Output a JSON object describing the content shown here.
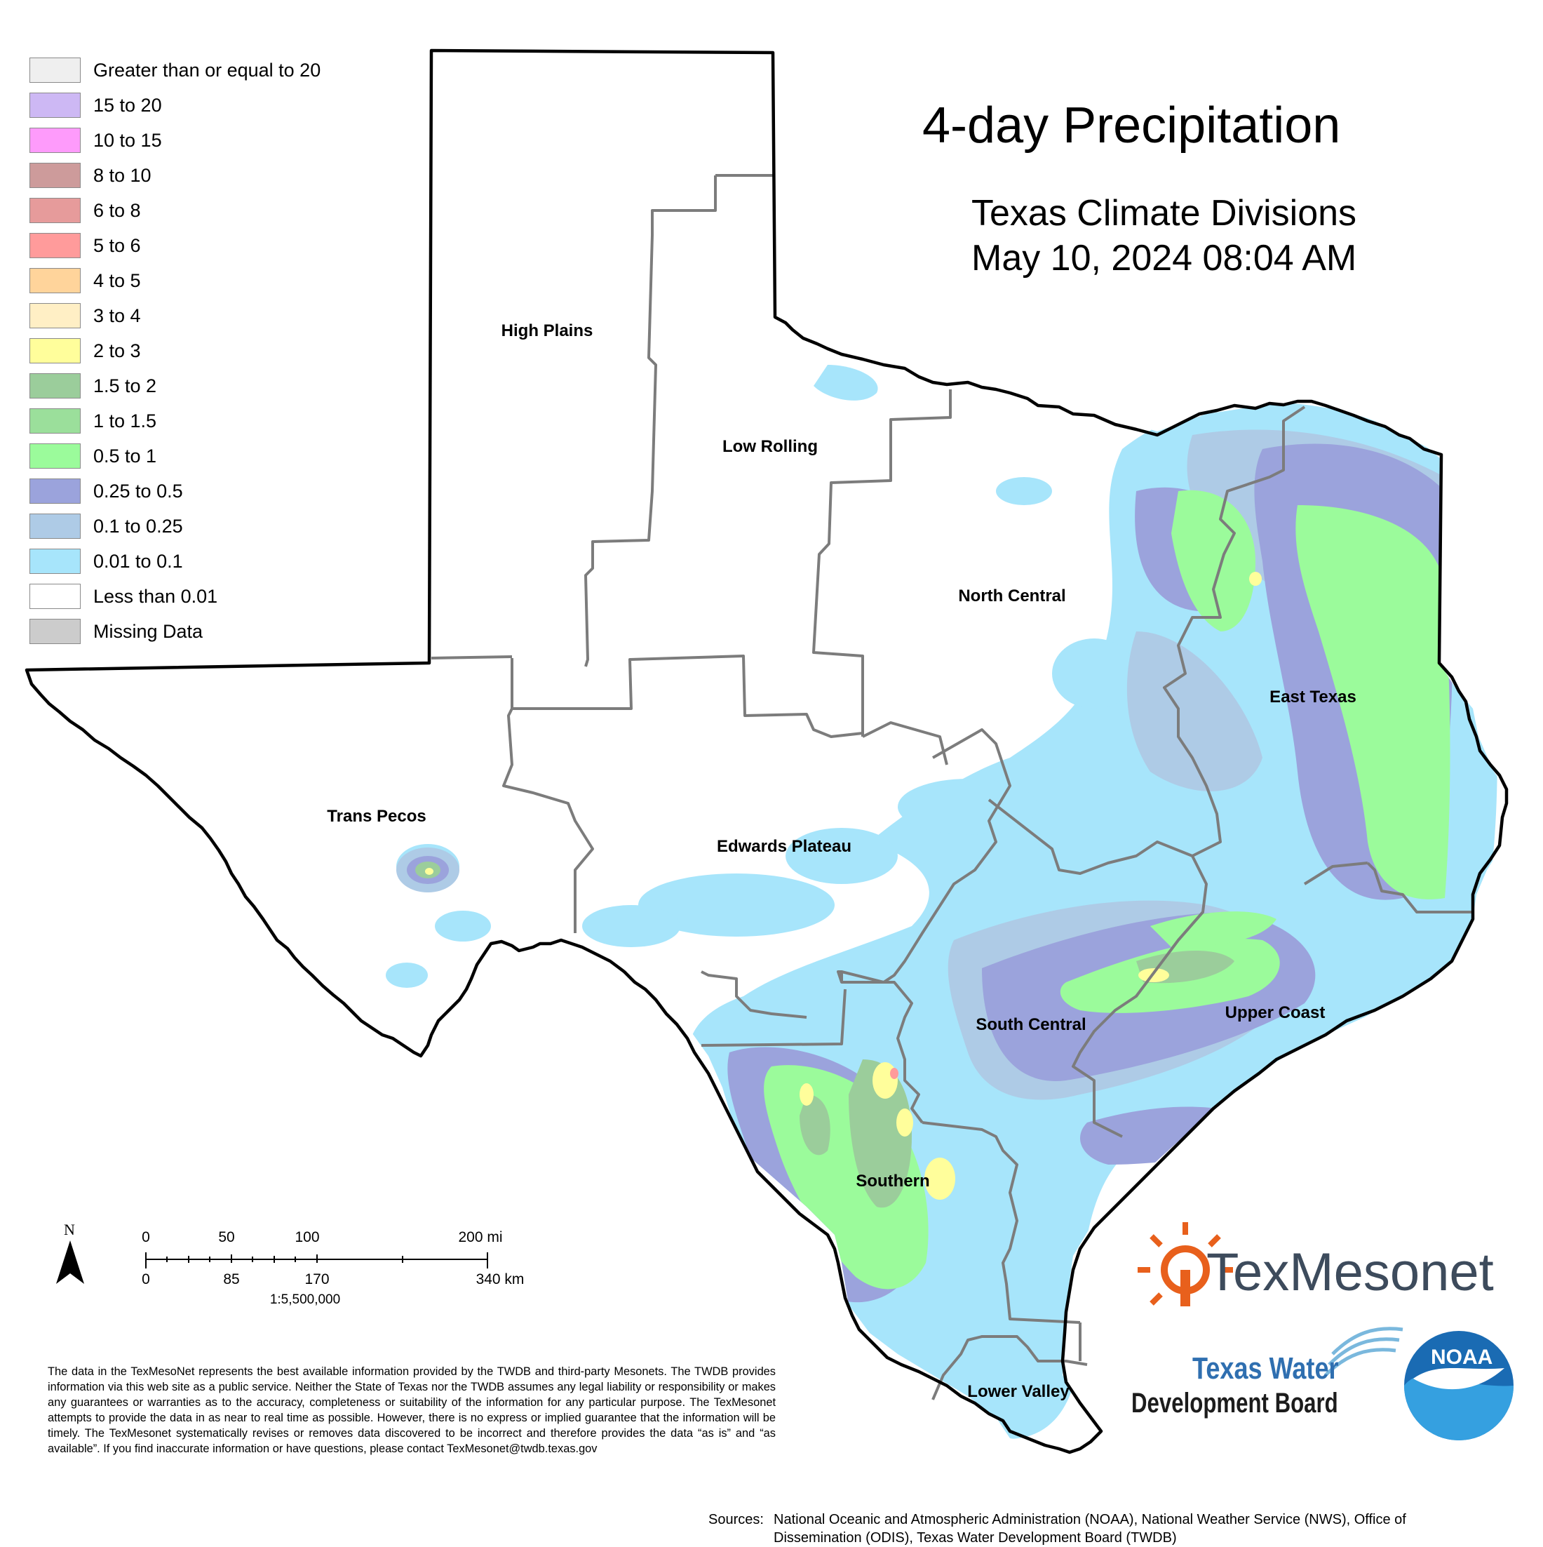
{
  "title": "4-day Precipitation",
  "subtitle_line1": "Texas Climate Divisions",
  "subtitle_line2": "May 10, 2024 08:04 AM",
  "legend": [
    {
      "label": "Greater than or equal to 20",
      "color": "#efefef"
    },
    {
      "label": "15 to 20",
      "color": "#cdb8f4"
    },
    {
      "label": "10 to 15",
      "color": "#fe9bfb"
    },
    {
      "label": "8 to 10",
      "color": "#cd9b9b"
    },
    {
      "label": "6 to 8",
      "color": "#e69b9b"
    },
    {
      "label": "5 to 6",
      "color": "#ff9b9b"
    },
    {
      "label": "4 to 5",
      "color": "#ffd49b"
    },
    {
      "label": "3 to 4",
      "color": "#ffefc5"
    },
    {
      "label": "2 to 3",
      "color": "#fffe9b"
    },
    {
      "label": "1.5 to 2",
      "color": "#9bcd9b"
    },
    {
      "label": "1 to 1.5",
      "color": "#9bdf9b"
    },
    {
      "label": "0.5 to 1",
      "color": "#9bfb9b"
    },
    {
      "label": "0.25 to 0.5",
      "color": "#9ba3dc"
    },
    {
      "label": "0.1 to 0.25",
      "color": "#aecbe6"
    },
    {
      "label": "0.01 to 0.1",
      "color": "#a7e5fb"
    },
    {
      "label": "Less than 0.01",
      "color": "#ffffff"
    },
    {
      "label": "Missing Data",
      "color": "#cccccc"
    }
  ],
  "regions": {
    "high_plains": "High Plains",
    "low_rolling": "Low Rolling",
    "north_central": "North Central",
    "east_texas": "East Texas",
    "trans_pecos": "Trans Pecos",
    "edwards_plateau": "Edwards Plateau",
    "south_central": "South Central",
    "upper_coast": "Upper Coast",
    "southern": "Southern",
    "lower_valley": "Lower Valley"
  },
  "scale_bar": {
    "north": "N",
    "mi_labels": [
      "0",
      "50",
      "100",
      "200 mi"
    ],
    "km_labels": [
      "0",
      "85",
      "170",
      "340 km"
    ],
    "ratio": "1:5,500,000"
  },
  "disclaimer": "The data in the TexMesoNet represents the best available information provided by the TWDB and third-party Mesonets. The TWDB provides information via this web site as a public service. Neither the State of Texas nor the TWDB assumes any legal liability or responsibility or makes any guarantees or warranties as to the accuracy, completeness or suitability of the information for any particular purpose. The TexMesonet attempts to provide the data in as near to real time as possible. However, there is no express or implied guarantee that the information will be timely. The TexMesonet systematically revises or removes data discovered to be incorrect and therefore provides the data “as is” and “as available”. If you find inaccurate information or have questions, please contact TexMesonet@twdb.texas.gov",
  "sources_label": "Sources:",
  "sources_text": "National Oceanic and Atmospheric Administration (NOAA), National Weather Service (NWS), Office of Dissemination (ODIS), Texas Water Development Board (TWDB)",
  "logos": {
    "texmesonet": "TexMesonet",
    "twdb_line1": "Texas Water",
    "twdb_line2": "Development Board",
    "noaa": "NOAA"
  }
}
